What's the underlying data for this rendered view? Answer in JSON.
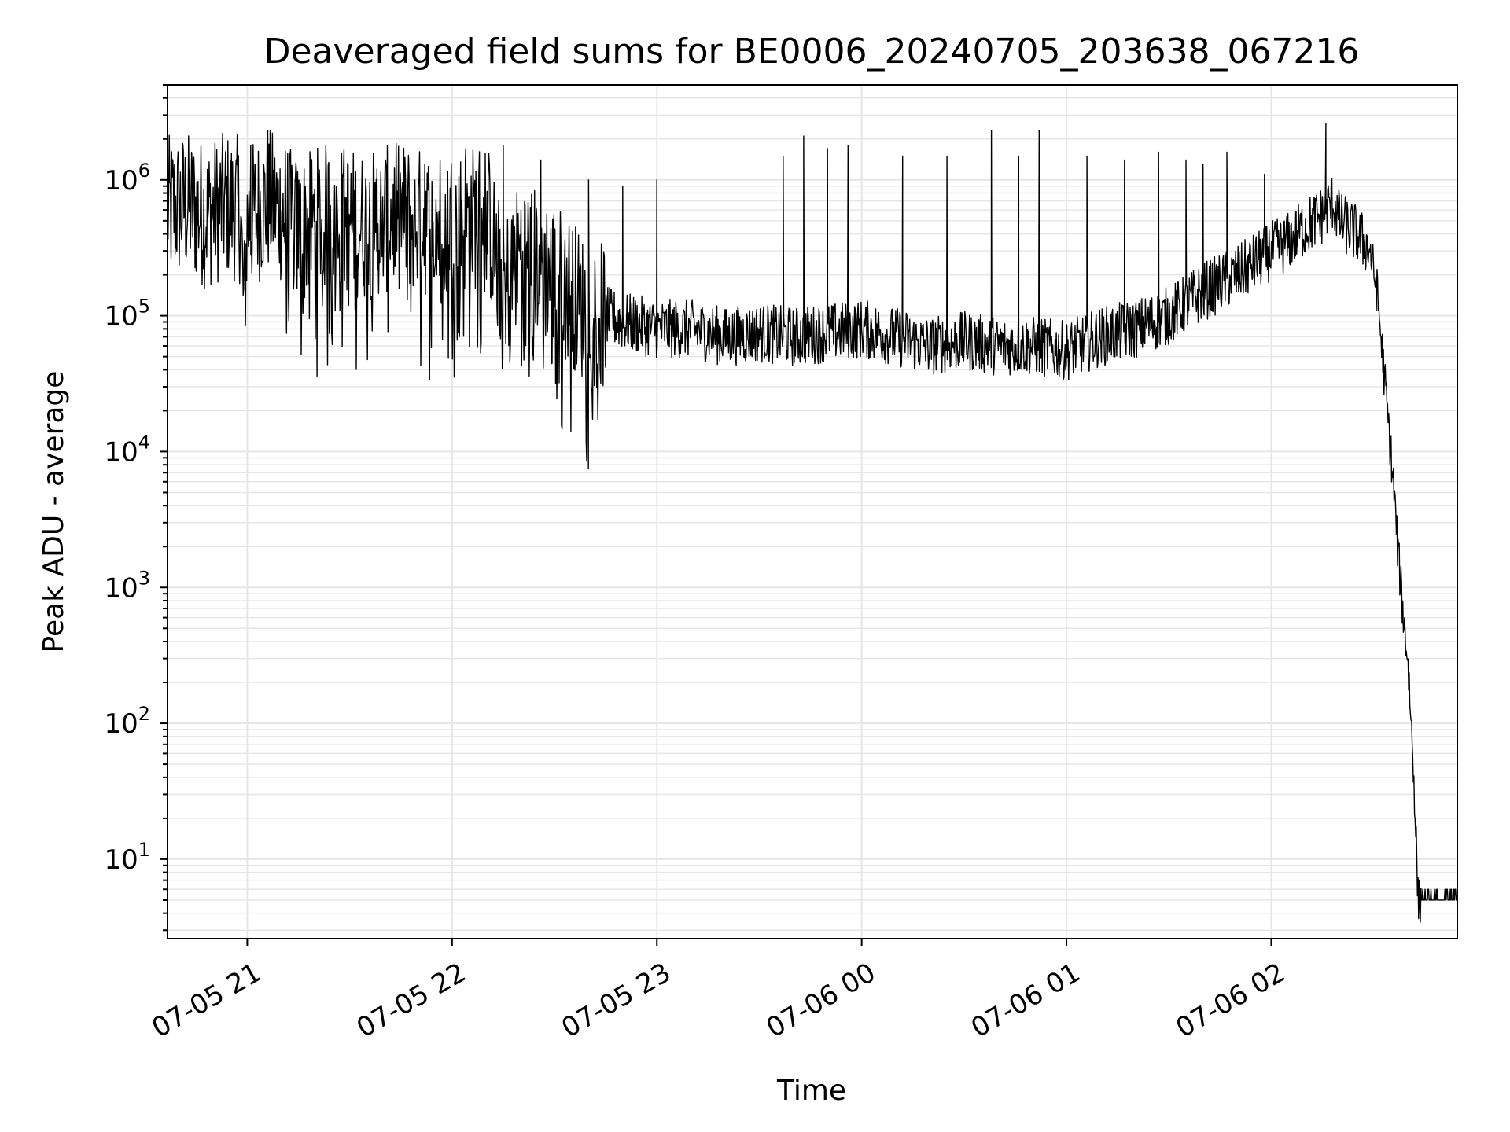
{
  "chart_data": {
    "type": "line",
    "title": "Deaveraged field sums for BE0006_20240705_203638_067216",
    "xlabel": "Time",
    "ylabel": "Peak ADU - average",
    "yscale": "log",
    "ylim": [
      2.6,
      5000000
    ],
    "xlim": [
      "2024-07-05 20:36:38",
      "2024-07-06 02:54:30"
    ],
    "grid": true,
    "line_color": "#000000",
    "grid_color": "#e6e6e6",
    "x_ticks": [
      {
        "value": "2024-07-05 21:00",
        "label": "07-05 21"
      },
      {
        "value": "2024-07-05 22:00",
        "label": "07-05 22"
      },
      {
        "value": "2024-07-05 23:00",
        "label": "07-05 23"
      },
      {
        "value": "2024-07-06 00:00",
        "label": "07-06 00"
      },
      {
        "value": "2024-07-06 01:00",
        "label": "07-06 01"
      },
      {
        "value": "2024-07-06 02:00",
        "label": "07-06 02"
      }
    ],
    "y_ticks": [
      {
        "value": 10,
        "base": "10",
        "exp": "1"
      },
      {
        "value": 100,
        "base": "10",
        "exp": "2"
      },
      {
        "value": 1000,
        "base": "10",
        "exp": "3"
      },
      {
        "value": 10000,
        "base": "10",
        "exp": "4"
      },
      {
        "value": 100000,
        "base": "10",
        "exp": "5"
      },
      {
        "value": 1000000,
        "base": "10",
        "exp": "6"
      }
    ],
    "series": [
      {
        "x": [
          "2024-07-05 20:36:38",
          "2024-07-05 20:42",
          "2024-07-05 20:48",
          "2024-07-05 20:54",
          "2024-07-05 20:58",
          "2024-07-05 20:59",
          "2024-07-05 21:00",
          "2024-07-05 21:03",
          "2024-07-05 21:06",
          "2024-07-05 21:10",
          "2024-07-05 21:15",
          "2024-07-05 21:20",
          "2024-07-05 21:25",
          "2024-07-05 21:30",
          "2024-07-05 21:35",
          "2024-07-05 21:40",
          "2024-07-05 21:45",
          "2024-07-05 21:50",
          "2024-07-05 21:55",
          "2024-07-05 22:00",
          "2024-07-05 22:05",
          "2024-07-05 22:10",
          "2024-07-05 22:15",
          "2024-07-05 22:20",
          "2024-07-05 22:25",
          "2024-07-05 22:30",
          "2024-07-05 22:35",
          "2024-07-05 22:40",
          "2024-07-05 22:45",
          "2024-07-05 22:50",
          "2024-07-05 22:55",
          "2024-07-05 23:00",
          "2024-07-05 23:10",
          "2024-07-05 23:20",
          "2024-07-05 23:30",
          "2024-07-05 23:40",
          "2024-07-05 23:50",
          "2024-07-06 00:00",
          "2024-07-06 00:10",
          "2024-07-06 00:20",
          "2024-07-06 00:30",
          "2024-07-06 00:40",
          "2024-07-06 00:50",
          "2024-07-06 01:00",
          "2024-07-06 01:10",
          "2024-07-06 01:20",
          "2024-07-06 01:30",
          "2024-07-06 01:40",
          "2024-07-06 01:50",
          "2024-07-06 02:00",
          "2024-07-06 02:05",
          "2024-07-06 02:10",
          "2024-07-06 02:15",
          "2024-07-06 02:18",
          "2024-07-06 02:20",
          "2024-07-06 02:25",
          "2024-07-06 02:29",
          "2024-07-06 02:31",
          "2024-07-06 02:34",
          "2024-07-06 02:36",
          "2024-07-06 02:37",
          "2024-07-06 02:38",
          "2024-07-06 02:39",
          "2024-07-06 02:40",
          "2024-07-06 02:41",
          "2024-07-06 02:42",
          "2024-07-06 02:43",
          "2024-07-06 02:44",
          "2024-07-06 02:45",
          "2024-07-06 02:50",
          "2024-07-06 02:54:30"
        ],
        "y": [
          600000,
          650000,
          550000,
          650000,
          600000,
          100000,
          500000,
          600000,
          700000,
          600000,
          400000,
          500000,
          550000,
          500000,
          450000,
          500000,
          550000,
          500000,
          450000,
          500000,
          500000,
          600000,
          150000,
          300000,
          250000,
          200000,
          150000,
          100000,
          100000,
          90000,
          85000,
          80000,
          80000,
          70000,
          75000,
          70000,
          75000,
          80000,
          70000,
          60000,
          65000,
          60000,
          60000,
          55000,
          70000,
          80000,
          100000,
          150000,
          200000,
          300000,
          350000,
          450000,
          550000,
          700000,
          500000,
          400000,
          300000,
          150000,
          20000,
          5000,
          2000,
          1000,
          500,
          300,
          100,
          30,
          5,
          5,
          5,
          5,
          5
        ]
      }
    ],
    "spikes": [
      {
        "x": "2024-07-05 20:52",
        "y": 1000000
      },
      {
        "x": "2024-07-05 21:01",
        "y": 1800000
      },
      {
        "x": "2024-07-05 21:06",
        "y": 2300000
      },
      {
        "x": "2024-07-05 21:14",
        "y": 1000000
      },
      {
        "x": "2024-07-05 21:28",
        "y": 1100000
      },
      {
        "x": "2024-07-05 21:38",
        "y": 1200000
      },
      {
        "x": "2024-07-05 21:52",
        "y": 1300000
      },
      {
        "x": "2024-07-05 22:04",
        "y": 1700000
      },
      {
        "x": "2024-07-05 22:15",
        "y": 1800000
      },
      {
        "x": "2024-07-05 22:26",
        "y": 1400000
      },
      {
        "x": "2024-07-05 22:40",
        "y": 1000000
      },
      {
        "x": "2024-07-05 22:50",
        "y": 900000
      },
      {
        "x": "2024-07-05 23:00",
        "y": 1000000
      },
      {
        "x": "2024-07-05 23:37",
        "y": 1500000
      },
      {
        "x": "2024-07-05 23:43",
        "y": 2100000
      },
      {
        "x": "2024-07-05 23:50",
        "y": 1700000
      },
      {
        "x": "2024-07-05 23:56",
        "y": 1800000
      },
      {
        "x": "2024-07-06 00:12",
        "y": 1500000
      },
      {
        "x": "2024-07-06 00:25",
        "y": 1500000
      },
      {
        "x": "2024-07-06 00:38",
        "y": 2300000
      },
      {
        "x": "2024-07-06 00:46",
        "y": 1500000
      },
      {
        "x": "2024-07-06 00:52",
        "y": 2300000
      },
      {
        "x": "2024-07-06 01:06",
        "y": 1500000
      },
      {
        "x": "2024-07-06 01:17",
        "y": 1400000
      },
      {
        "x": "2024-07-06 01:27",
        "y": 1600000
      },
      {
        "x": "2024-07-06 01:35",
        "y": 1400000
      },
      {
        "x": "2024-07-06 01:40",
        "y": 1300000
      },
      {
        "x": "2024-07-06 01:47",
        "y": 1600000
      },
      {
        "x": "2024-07-06 01:58",
        "y": 1100000
      },
      {
        "x": "2024-07-06 02:16",
        "y": 2600000
      }
    ]
  }
}
